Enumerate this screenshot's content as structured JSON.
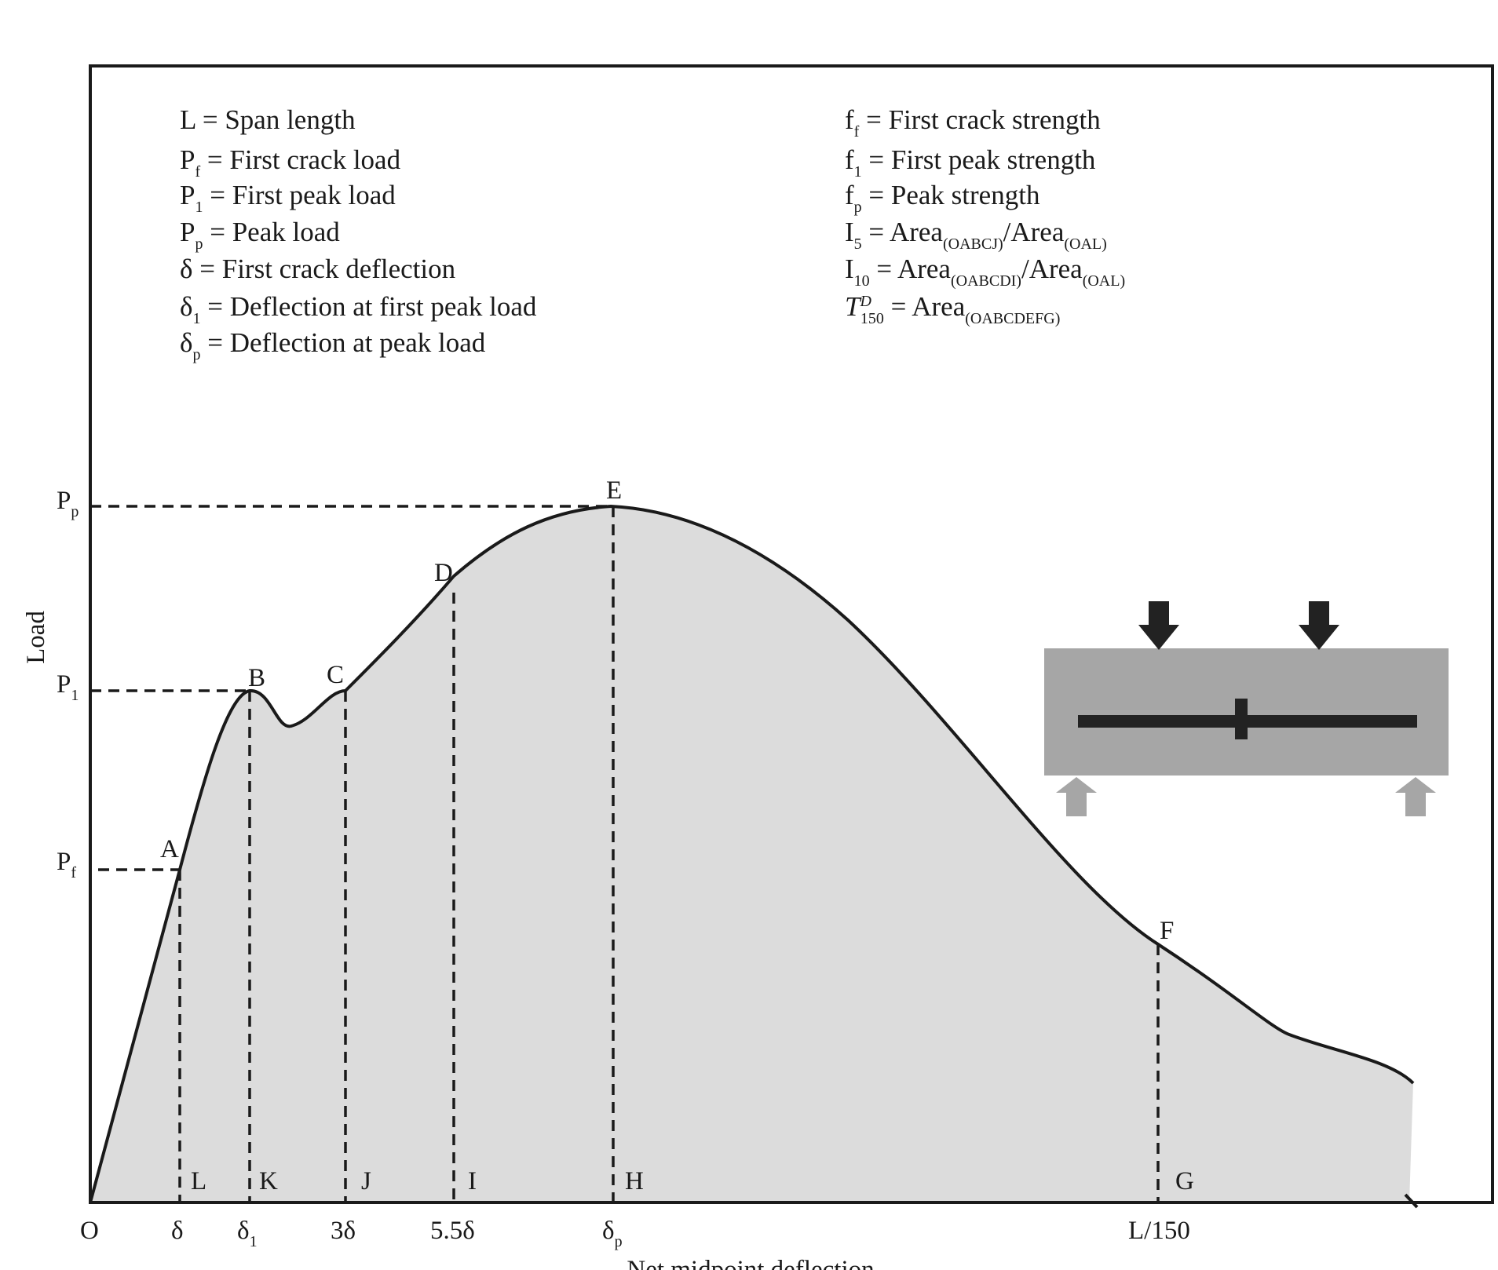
{
  "legend_left": [
    {
      "base": "L",
      "sub": "",
      "text": " = Span length"
    },
    {
      "base": "P",
      "sub": "f",
      "text": " = First crack load"
    },
    {
      "base": "P",
      "sub": "1",
      "text": " = First peak load"
    },
    {
      "base": "P",
      "sub": "p",
      "text": " = Peak load"
    },
    {
      "base": "δ",
      "sub": "",
      "text": " = First crack deflection"
    },
    {
      "base": "δ",
      "sub": "1",
      "text": " = Deflection at first peak load"
    },
    {
      "base": "δ",
      "sub": "p",
      "text": " = Deflection at peak load"
    }
  ],
  "legend_right": [
    {
      "parts": [
        {
          "t": "f"
        },
        {
          "t": "f",
          "sub": true
        },
        {
          "t": " = First crack strength"
        }
      ]
    },
    {
      "parts": [
        {
          "t": "f"
        },
        {
          "t": "1",
          "sub": true
        },
        {
          "t": " = First peak strength"
        }
      ]
    },
    {
      "parts": [
        {
          "t": "f"
        },
        {
          "t": "p",
          "sub": true
        },
        {
          "t": " = Peak strength"
        }
      ]
    },
    {
      "parts": [
        {
          "t": "I"
        },
        {
          "t": "5",
          "sub": true
        },
        {
          "t": " = Area"
        },
        {
          "t": "(OABCJ)",
          "sub": true
        },
        {
          "t": "/Area"
        },
        {
          "t": "(OAL)",
          "sub": true
        }
      ]
    },
    {
      "parts": [
        {
          "t": "I"
        },
        {
          "t": "10",
          "sub": true
        },
        {
          "t": " = Area"
        },
        {
          "t": "(OABCDI)",
          "sub": true
        },
        {
          "t": "/Area"
        },
        {
          "t": "(OAL)",
          "sub": true
        }
      ]
    },
    {
      "parts": [
        {
          "t": "T",
          "italic": true
        },
        {
          "t": "D",
          "sup": true,
          "italic": true
        },
        {
          "t": "150",
          "sub": true
        },
        {
          "t": " = Area"
        },
        {
          "t": "(OABCDEFG)",
          "sub": true
        }
      ]
    }
  ],
  "y_axis": {
    "label": "Load",
    "ticks": [
      {
        "base": "P",
        "sub": "p"
      },
      {
        "base": "P",
        "sub": "1"
      },
      {
        "base": "P",
        "sub": "f"
      }
    ]
  },
  "x_axis": {
    "label": "Net midpoint deflection",
    "ticks": [
      {
        "base": "O",
        "sub": ""
      },
      {
        "base": "δ",
        "sub": ""
      },
      {
        "base": "δ",
        "sub": "1"
      },
      {
        "base": "3δ",
        "sub": ""
      },
      {
        "base": "5.5δ",
        "sub": ""
      },
      {
        "base": "δ",
        "sub": "p"
      },
      {
        "base": "L/150",
        "sub": ""
      }
    ]
  },
  "curve_points": [
    "A",
    "B",
    "C",
    "D",
    "E",
    "F"
  ],
  "foot_points": [
    "L",
    "K",
    "J",
    "I",
    "H",
    "G"
  ],
  "colors": {
    "fill": "#dcdcdc",
    "line": "#1a1a1a",
    "beam": "#a6a6a6",
    "rebar": "#222222",
    "support": "#a6a6a6"
  },
  "icons": [
    "load-arrow-icon",
    "support-arrow-icon"
  ]
}
